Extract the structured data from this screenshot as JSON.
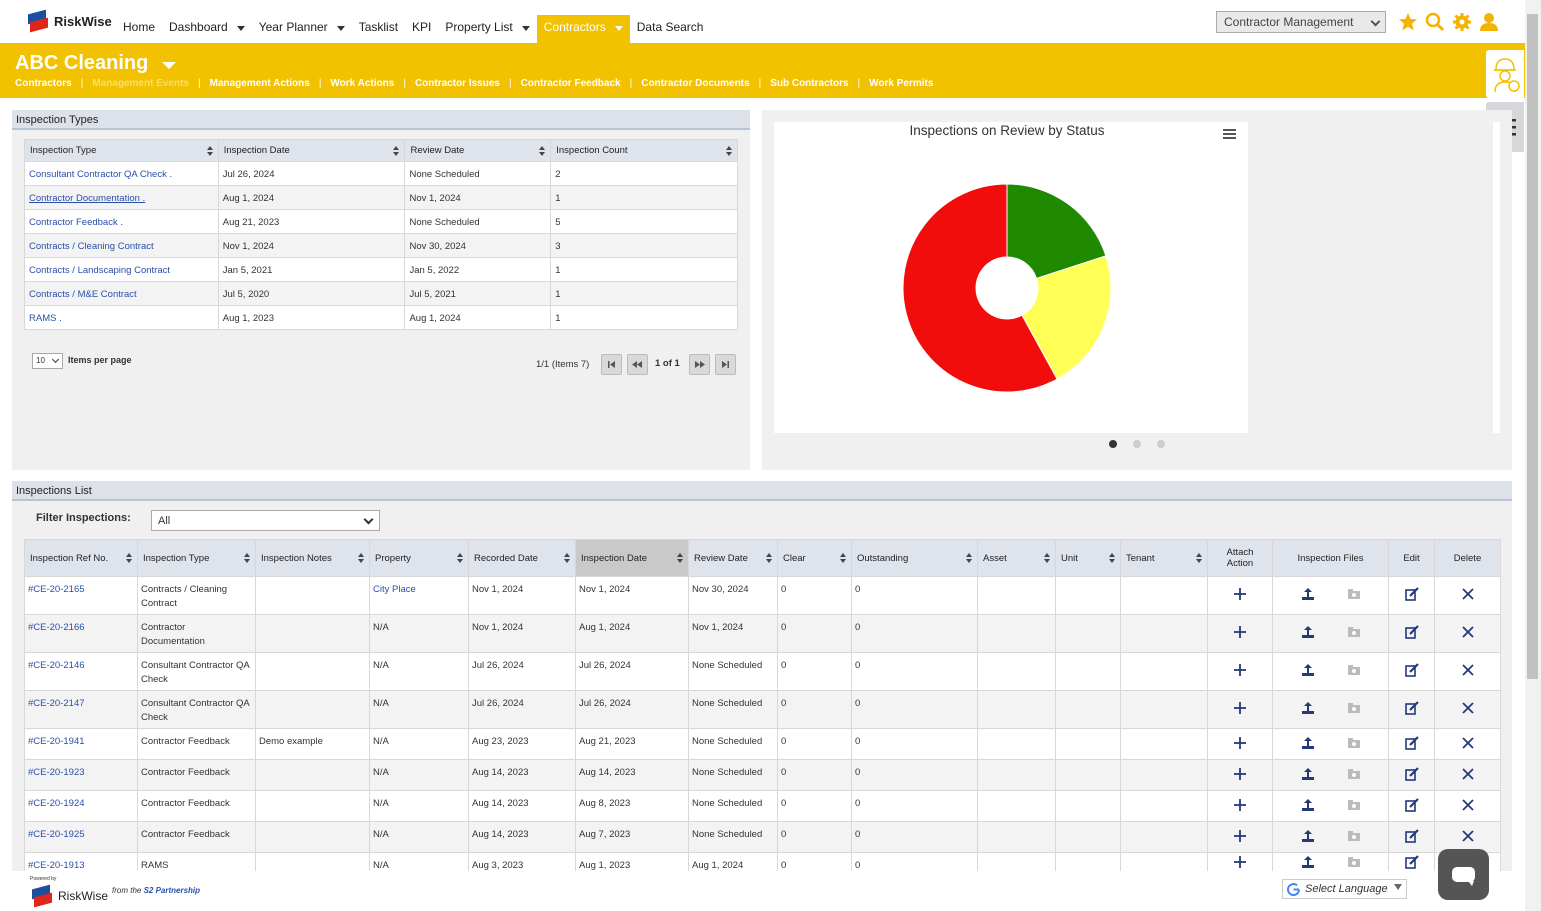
{
  "brand": {
    "name": "RiskWise",
    "powered_by": "Powered by",
    "partner_prefix": "from the",
    "partner": "S2 Partnership"
  },
  "nav": {
    "items": [
      {
        "label": "Home",
        "dropdown": false
      },
      {
        "label": "Dashboard",
        "dropdown": true
      },
      {
        "label": "Year Planner",
        "dropdown": true
      },
      {
        "label": "Tasklist",
        "dropdown": false
      },
      {
        "label": "KPI",
        "dropdown": false
      },
      {
        "label": "Property List",
        "dropdown": true
      },
      {
        "label": "Contractors",
        "dropdown": true,
        "active": true
      },
      {
        "label": "Data Search",
        "dropdown": false
      }
    ]
  },
  "module_select": "Contractor Management",
  "top_icons": [
    "star-icon",
    "search-icon",
    "gear-icon",
    "user-icon"
  ],
  "page": {
    "title": "ABC Cleaning"
  },
  "subnav": [
    "Contractors",
    "Management Events",
    "Management Actions",
    "Work Actions",
    "Contractor Issues",
    "Contractor Feedback",
    "Contractor Documents",
    "Sub Contractors",
    "Work Permits"
  ],
  "inspection_types": {
    "heading": "Inspection Types",
    "columns": [
      "Inspection Type",
      "Inspection Date",
      "Review Date",
      "Inspection Count"
    ],
    "rows": [
      [
        "Consultant Contractor QA Check .",
        "Jul 26, 2024",
        "None Scheduled",
        "2"
      ],
      [
        "Contractor Documentation .",
        "Aug 1, 2024",
        "Nov 1, 2024",
        "1"
      ],
      [
        "Contractor Feedback .",
        "Aug 21, 2023",
        "None Scheduled",
        "5"
      ],
      [
        "Contracts / Cleaning Contract",
        "Nov 1, 2024",
        "Nov 30, 2024",
        "3"
      ],
      [
        "Contracts / Landscaping Contract",
        "Jan 5, 2021",
        "Jan 5, 2022",
        "1"
      ],
      [
        "Contracts / M&E Contract",
        "Jul 5, 2020",
        "Jul 5, 2021",
        "1"
      ],
      [
        "RAMS .",
        "Aug 1, 2023",
        "Aug 1, 2024",
        "1"
      ]
    ],
    "page_size": "10",
    "items_per_page": "Items per page",
    "summary": "1/1 (Items 7)",
    "page_of": "1 of 1"
  },
  "chart_data": {
    "type": "pie",
    "title": "Inspections on Review by Status",
    "series": [
      {
        "values": [
          20,
          22,
          58
        ],
        "colors": [
          "#1f8a00",
          "#ffff55",
          "#f20c0c"
        ]
      }
    ]
  },
  "inspections_list": {
    "heading": "Inspections List",
    "filter_label": "Filter Inspections:",
    "filter_value": "All",
    "columns": [
      "Inspection Ref No.",
      "Inspection Type",
      "Inspection Notes",
      "Property",
      "Recorded Date",
      "Inspection Date",
      "Review Date",
      "Clear",
      "Outstanding",
      "Asset",
      "Unit",
      "Tenant",
      "Attach Action",
      "Inspection Files",
      "Edit",
      "Delete"
    ],
    "rows": [
      [
        "#CE-20-2165",
        "Contracts / Cleaning Contract",
        "",
        "City Place",
        "Nov 1, 2024",
        "Nov 1, 2024",
        "Nov 30, 2024",
        "0",
        "0",
        "",
        "",
        ""
      ],
      [
        "#CE-20-2166",
        "Contractor Documentation",
        "",
        "N/A",
        "Nov 1, 2024",
        "Aug 1, 2024",
        "Nov 1, 2024",
        "0",
        "0",
        "",
        "",
        ""
      ],
      [
        "#CE-20-2146",
        "Consultant Contractor QA Check",
        "",
        "N/A",
        "Jul 26, 2024",
        "Jul 26, 2024",
        "None Scheduled",
        "0",
        "0",
        "",
        "",
        ""
      ],
      [
        "#CE-20-2147",
        "Consultant Contractor QA Check",
        "",
        "N/A",
        "Jul 26, 2024",
        "Jul 26, 2024",
        "None Scheduled",
        "0",
        "0",
        "",
        "",
        ""
      ],
      [
        "#CE-20-1941",
        "Contractor Feedback",
        "Demo example",
        "N/A",
        "Aug 23, 2023",
        "Aug 21, 2023",
        "None Scheduled",
        "0",
        "0",
        "",
        "",
        ""
      ],
      [
        "#CE-20-1923",
        "Contractor Feedback",
        "",
        "N/A",
        "Aug 14, 2023",
        "Aug 14, 2023",
        "None Scheduled",
        "0",
        "0",
        "",
        "",
        ""
      ],
      [
        "#CE-20-1924",
        "Contractor Feedback",
        "",
        "N/A",
        "Aug 14, 2023",
        "Aug 8, 2023",
        "None Scheduled",
        "0",
        "0",
        "",
        "",
        ""
      ],
      [
        "#CE-20-1925",
        "Contractor Feedback",
        "",
        "N/A",
        "Aug 14, 2023",
        "Aug 7, 2023",
        "None Scheduled",
        "0",
        "0",
        "",
        "",
        ""
      ],
      [
        "#CE-20-1913",
        "RAMS",
        "",
        "N/A",
        "Aug 3, 2023",
        "Aug 1, 2023",
        "Aug 1, 2024",
        "0",
        "0",
        "",
        "",
        ""
      ]
    ]
  },
  "footer": {
    "language": "Select Language"
  }
}
